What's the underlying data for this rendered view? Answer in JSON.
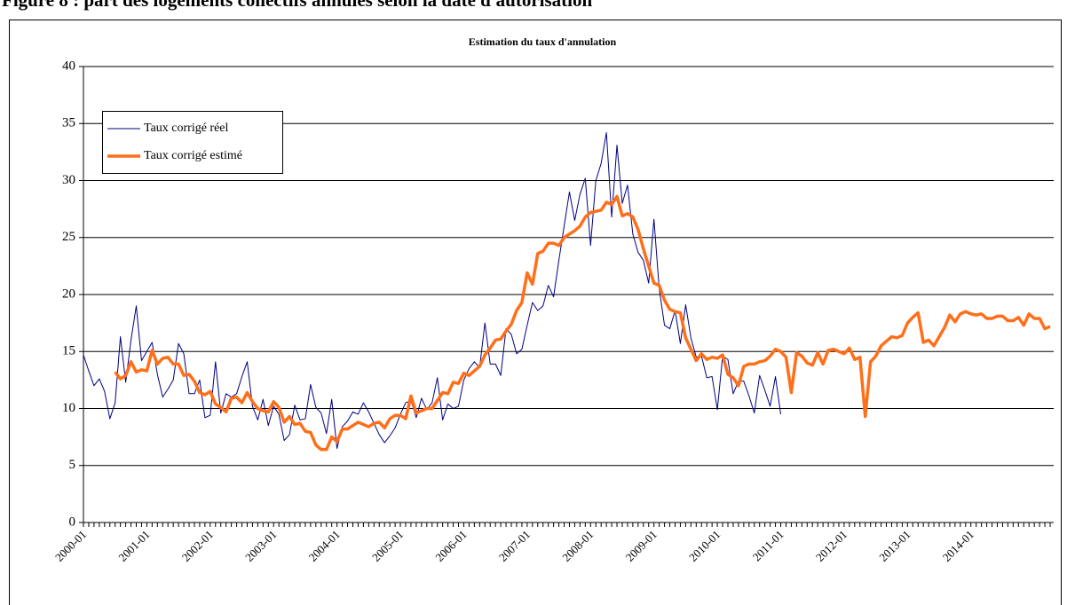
{
  "figure_title": "Figure 8 : part des logements collectifs annulés selon la date d'autorisation",
  "chart_data": {
    "type": "line",
    "title": "Estimation du taux d'annulation",
    "categories": [
      "2000-01",
      null,
      null,
      null,
      null,
      null,
      null,
      null,
      null,
      null,
      null,
      null,
      "2001-01",
      null,
      null,
      null,
      null,
      null,
      null,
      null,
      null,
      null,
      null,
      null,
      "2002-01",
      null,
      null,
      null,
      null,
      null,
      null,
      null,
      null,
      null,
      null,
      null,
      "2003-01",
      null,
      null,
      null,
      null,
      null,
      null,
      null,
      null,
      null,
      null,
      null,
      "2004-01",
      null,
      null,
      null,
      null,
      null,
      null,
      null,
      null,
      null,
      null,
      null,
      "2005-01",
      null,
      null,
      null,
      null,
      null,
      null,
      null,
      null,
      null,
      null,
      null,
      "2006-01",
      null,
      null,
      null,
      null,
      null,
      null,
      null,
      null,
      null,
      null,
      null,
      "2007-01",
      null,
      null,
      null,
      null,
      null,
      null,
      null,
      null,
      null,
      null,
      null,
      "2008-01",
      null,
      null,
      null,
      null,
      null,
      null,
      null,
      null,
      null,
      null,
      null,
      "2009-01",
      null,
      null,
      null,
      null,
      null,
      null,
      null,
      null,
      null,
      null,
      null,
      "2010-01",
      null,
      null,
      null,
      null,
      null,
      null,
      null,
      null,
      null,
      null,
      null,
      "2011-01",
      null,
      null,
      null,
      null,
      null,
      null,
      null,
      null,
      null,
      null,
      null,
      "2012-01",
      null,
      null,
      null,
      null,
      null,
      null,
      null,
      null,
      null,
      null,
      null,
      "2013-01",
      null,
      null,
      null,
      null,
      null,
      null,
      null,
      null,
      null,
      null,
      null,
      "2014-01",
      null,
      null,
      null,
      null,
      null,
      null,
      null,
      null,
      null,
      null,
      null,
      null,
      null,
      null,
      null
    ],
    "series": [
      {
        "name": "Taux corrigé réel",
        "color": "#000080",
        "width": 1,
        "values": [
          14.7,
          13.3,
          12.0,
          12.6,
          11.5,
          9.1,
          10.5,
          16.3,
          12.3,
          16.0,
          19.0,
          14.2,
          15.0,
          15.8,
          13.0,
          11.0,
          11.7,
          12.5,
          15.7,
          14.8,
          11.3,
          11.3,
          12.5,
          9.2,
          9.4,
          14.1,
          9.6,
          11.3,
          11.0,
          11.3,
          12.8,
          14.1,
          10.2,
          9.0,
          10.8,
          8.5,
          10.2,
          9.5,
          7.2,
          7.7,
          10.3,
          9.0,
          9.1,
          12.1,
          10.1,
          9.6,
          7.8,
          10.8,
          6.5,
          8.4,
          8.9,
          9.7,
          9.5,
          10.5,
          9.7,
          8.7,
          7.7,
          7.0,
          7.6,
          8.3,
          9.5,
          10.5,
          10.7,
          9.2,
          10.9,
          9.9,
          10.5,
          12.7,
          9.0,
          10.4,
          10.0,
          10.2,
          12.5,
          13.5,
          14.1,
          13.6,
          17.5,
          13.9,
          13.9,
          12.9,
          17.0,
          16.5,
          14.8,
          15.2,
          17.3,
          19.3,
          18.6,
          19.0,
          20.8,
          19.8,
          23.0,
          26.0,
          29.0,
          26.5,
          28.8,
          30.2,
          24.3,
          30.0,
          31.5,
          34.2,
          26.8,
          33.1,
          28.0,
          29.6,
          25.3,
          23.7,
          23.0,
          21.0,
          26.6,
          20.5,
          17.3,
          17.0,
          18.6,
          15.7,
          19.1,
          16.2,
          14.5,
          14.6,
          12.7,
          12.8,
          9.9,
          14.6,
          14.3,
          11.3,
          12.4,
          12.4,
          11.1,
          9.6,
          12.9,
          11.6,
          10.2,
          12.8,
          9.5,
          null,
          null,
          null,
          null,
          null,
          null,
          null,
          null,
          null,
          null,
          null,
          null,
          null,
          null,
          null,
          null,
          null,
          null,
          null,
          null,
          null,
          null,
          null,
          null,
          null,
          null,
          null,
          null,
          null,
          null,
          null,
          null,
          null,
          null,
          null,
          null,
          null,
          null,
          null,
          null,
          null,
          null,
          null,
          null,
          null,
          null,
          null,
          null,
          null,
          null,
          null
        ]
      },
      {
        "name": "Taux corrigé estimé",
        "color": "#ff6f1a",
        "width": 3.5,
        "values": [
          null,
          null,
          null,
          null,
          null,
          null,
          13.2,
          12.6,
          12.9,
          14.1,
          13.2,
          13.4,
          13.3,
          15.1,
          13.9,
          14.4,
          14.5,
          13.9,
          13.9,
          12.9,
          13.0,
          12.4,
          11.4,
          11.2,
          11.5,
          10.4,
          10.1,
          9.7,
          10.9,
          11.0,
          10.5,
          11.4,
          10.6,
          10.0,
          9.8,
          9.7,
          10.6,
          10.1,
          8.8,
          9.3,
          8.6,
          8.7,
          8.0,
          7.9,
          6.8,
          6.4,
          6.4,
          7.5,
          7.1,
          8.2,
          8.2,
          8.5,
          8.8,
          8.6,
          8.4,
          8.7,
          8.8,
          8.3,
          9.1,
          9.4,
          9.4,
          9.1,
          11.1,
          9.6,
          9.8,
          10.0,
          10.0,
          10.7,
          11.4,
          11.3,
          12.3,
          12.2,
          13.1,
          12.9,
          13.3,
          13.7,
          14.7,
          15.3,
          16.0,
          16.1,
          16.8,
          17.4,
          18.6,
          19.3,
          21.9,
          20.9,
          23.6,
          23.8,
          24.5,
          24.5,
          24.3,
          25.0,
          25.3,
          25.6,
          26.0,
          26.8,
          27.2,
          27.3,
          27.4,
          28.1,
          27.9,
          28.6,
          26.9,
          27.1,
          26.8,
          25.7,
          24.0,
          22.5,
          21.0,
          20.8,
          19.5,
          18.7,
          18.5,
          18.4,
          16.2,
          15.2,
          14.2,
          14.8,
          14.3,
          14.5,
          14.4,
          14.7,
          13.0,
          12.7,
          12.0,
          13.7,
          13.9,
          13.9,
          14.1,
          14.2,
          14.6,
          15.2,
          15.0,
          14.5,
          11.4,
          14.9,
          14.6,
          14.0,
          13.8,
          14.9,
          13.9,
          15.1,
          15.2,
          15.0,
          14.8,
          15.3,
          14.3,
          14.5,
          9.3,
          14.1,
          14.6,
          15.5,
          15.9,
          16.3,
          16.2,
          16.4,
          17.5,
          18.0,
          18.4,
          15.8,
          16.0,
          15.5,
          16.3,
          17.1,
          18.2,
          17.6,
          18.3,
          18.5,
          18.3,
          18.2,
          18.3,
          17.9,
          17.9,
          18.1,
          18.1,
          17.7,
          17.7,
          18.0,
          17.3,
          18.3,
          17.9,
          17.9,
          17.0,
          17.2
        ]
      }
    ],
    "ylim": [
      0,
      40
    ],
    "yticks": [
      0,
      5,
      10,
      15,
      20,
      25,
      30,
      35,
      40
    ],
    "grid": true
  }
}
